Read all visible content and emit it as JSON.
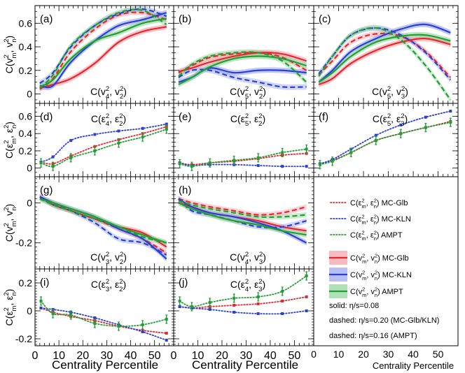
{
  "figure": {
    "x_axis_title": "Centrality Percentile",
    "colors": {
      "mc_glb": "#e8262f",
      "mc_kln": "#2a3fd6",
      "ampt": "#229e35",
      "band_glb": "#f4a0a4",
      "band_kln": "#9aa3ef",
      "band_ampt": "#8fd39a"
    },
    "row_labels": [
      {
        "text": "C(v²m, v²n)"
      },
      {
        "text": "C(ε²m, ε²n)"
      },
      {
        "text": "C(v²m, v²n)"
      },
      {
        "text": "C(ε²m, ε²n)"
      }
    ],
    "legend": {
      "items": [
        {
          "label": "C(ε²m, ε²n) MC-Glb",
          "style": "dot",
          "color": "mc_glb"
        },
        {
          "label": "C(ε²m, ε²n) MC-KLN",
          "style": "dot",
          "color": "mc_kln"
        },
        {
          "label": "C(ε²m, ε²n) AMPT",
          "style": "dot",
          "color": "ampt"
        },
        {
          "label": "C(v²m, v²n) MC-Glb",
          "style": "band",
          "color": "mc_glb"
        },
        {
          "label": "C(v²m, v²n) MC-KLN",
          "style": "band",
          "color": "mc_kln"
        },
        {
          "label": "C(v²m, v²n) AMPT",
          "style": "band",
          "color": "ampt"
        }
      ],
      "notes": [
        "solid: η/s=0.08",
        "dashed: η/s=0.20 (MC-Glb/KLN)",
        "dashed: η/s=0.16 (AMPT)"
      ]
    }
  },
  "chart_data": [
    {
      "id": "a",
      "type": "line",
      "letter": "(a)",
      "title": "C(v²4, v²2)",
      "kind": "v",
      "xlim": [
        0,
        58
      ],
      "ylim": [
        -0.08,
        0.75
      ],
      "yticks": [
        0,
        0.2,
        0.4,
        0.6
      ],
      "x": [
        2,
        7.5,
        15,
        25,
        35,
        45,
        55
      ],
      "series": [
        {
          "model": "mc_glb",
          "style": "solid",
          "values": [
            0.05,
            0.08,
            0.13,
            0.26,
            0.44,
            0.53,
            0.57
          ]
        },
        {
          "model": "mc_glb",
          "style": "dashed",
          "values": [
            0.04,
            0.13,
            0.36,
            0.55,
            0.67,
            0.69,
            0.63
          ]
        },
        {
          "model": "mc_kln",
          "style": "solid",
          "values": [
            0.07,
            0.07,
            0.27,
            0.45,
            0.58,
            0.63,
            0.69
          ]
        },
        {
          "model": "mc_kln",
          "style": "dashed",
          "values": [
            0.09,
            0.18,
            0.4,
            0.58,
            0.68,
            0.72,
            0.66
          ]
        },
        {
          "model": "ampt",
          "style": "solid",
          "values": [
            0.06,
            0.12,
            0.3,
            0.45,
            0.52,
            0.6,
            0.64
          ]
        },
        {
          "model": "ampt",
          "style": "dashed",
          "values": [
            0.05,
            0.16,
            0.41,
            0.58,
            0.69,
            0.71,
            0.59
          ]
        }
      ]
    },
    {
      "id": "b",
      "type": "line",
      "letter": "(b)",
      "title": "C(v²5, v²2)",
      "kind": "v",
      "xlim": [
        0,
        58
      ],
      "ylim": [
        -0.08,
        0.75
      ],
      "yticks": [
        0,
        0.2,
        0.4,
        0.6
      ],
      "x": [
        2,
        7.5,
        15,
        25,
        35,
        45,
        55
      ],
      "series": [
        {
          "model": "mc_glb",
          "style": "solid",
          "values": [
            0.19,
            0.22,
            0.27,
            0.32,
            0.35,
            0.34,
            0.28
          ]
        },
        {
          "model": "mc_glb",
          "style": "dashed",
          "values": [
            0.18,
            0.24,
            0.31,
            0.34,
            0.35,
            0.31,
            0.2
          ]
        },
        {
          "model": "mc_kln",
          "style": "solid",
          "values": [
            0.1,
            0.14,
            0.22,
            0.18,
            0.2,
            0.2,
            0.18
          ]
        },
        {
          "model": "mc_kln",
          "style": "dashed",
          "values": [
            0.14,
            0.2,
            0.2,
            0.14,
            0.1,
            0.06,
            0.06
          ]
        },
        {
          "model": "ampt",
          "style": "solid",
          "values": [
            0.08,
            0.14,
            0.23,
            0.3,
            0.32,
            0.3,
            0.24
          ]
        },
        {
          "model": "ampt",
          "style": "dashed",
          "values": [
            0.15,
            0.25,
            0.32,
            0.35,
            0.35,
            0.28,
            0.1
          ]
        }
      ]
    },
    {
      "id": "c",
      "type": "line",
      "letter": "(c)",
      "title": "C(v²5, v²3)",
      "kind": "v",
      "xlim": [
        0,
        58
      ],
      "ylim": [
        -0.08,
        0.75
      ],
      "yticks": [
        0,
        0.2,
        0.4,
        0.6
      ],
      "x": [
        2,
        7.5,
        15,
        25,
        35,
        45,
        55
      ],
      "series": [
        {
          "model": "mc_glb",
          "style": "solid",
          "values": [
            0.08,
            0.13,
            0.26,
            0.37,
            0.44,
            0.47,
            0.42
          ]
        },
        {
          "model": "mc_glb",
          "style": "dashed",
          "values": [
            0.16,
            0.28,
            0.44,
            0.51,
            0.49,
            0.36,
            0.14
          ]
        },
        {
          "model": "mc_kln",
          "style": "solid",
          "values": [
            0.1,
            0.2,
            0.36,
            0.47,
            0.55,
            0.59,
            0.52
          ]
        },
        {
          "model": "mc_kln",
          "style": "dashed",
          "values": [
            0.17,
            0.32,
            0.5,
            0.56,
            0.5,
            0.35,
            0.12
          ]
        },
        {
          "model": "ampt",
          "style": "solid",
          "values": [
            0.1,
            0.18,
            0.32,
            0.44,
            0.49,
            0.5,
            0.45
          ]
        },
        {
          "model": "ampt",
          "style": "dashed",
          "values": [
            0.15,
            0.32,
            0.5,
            0.56,
            0.46,
            0.24,
            -0.05
          ]
        }
      ]
    },
    {
      "id": "d",
      "type": "line",
      "letter": "(d)",
      "title": "C(ε²4, ε²2)",
      "kind": "e",
      "xlim": [
        0,
        58
      ],
      "ylim": [
        -0.1,
        0.75
      ],
      "yticks": [
        0,
        0.2,
        0.4,
        0.6
      ],
      "x": [
        2.5,
        7.5,
        15,
        25,
        35,
        45,
        55
      ],
      "series": [
        {
          "model": "mc_glb",
          "style": "dotted",
          "values": [
            0.07,
            0.05,
            0.14,
            0.25,
            0.33,
            0.4,
            0.48
          ]
        },
        {
          "model": "mc_kln",
          "style": "dotted",
          "values": [
            0.07,
            0.13,
            0.32,
            0.39,
            0.43,
            0.46,
            0.51
          ]
        },
        {
          "model": "ampt",
          "style": "dotted",
          "values": [
            0.06,
            0.02,
            0.12,
            0.2,
            0.29,
            0.36,
            0.45
          ]
        }
      ]
    },
    {
      "id": "e",
      "type": "line",
      "letter": "(e)",
      "title": "C(ε²5, ε²2)",
      "kind": "e",
      "xlim": [
        0,
        58
      ],
      "ylim": [
        -0.1,
        0.75
      ],
      "yticks": [
        0,
        0.2,
        0.4,
        0.6
      ],
      "x": [
        2.5,
        7.5,
        15,
        25,
        35,
        45,
        55
      ],
      "series": [
        {
          "model": "mc_glb",
          "style": "dotted",
          "values": [
            0.06,
            0.04,
            0.06,
            0.08,
            0.11,
            0.15,
            0.17
          ]
        },
        {
          "model": "mc_kln",
          "style": "dotted",
          "values": [
            0.06,
            0.03,
            0.04,
            0.04,
            0.03,
            0.02,
            0.02
          ]
        },
        {
          "model": "ampt",
          "style": "dotted",
          "values": [
            0.05,
            0.02,
            0.06,
            0.09,
            0.12,
            0.18,
            0.22
          ]
        }
      ]
    },
    {
      "id": "f",
      "type": "line",
      "letter": "(f)",
      "title": "C(ε²5, ε²3)",
      "kind": "e",
      "xlim": [
        0,
        58
      ],
      "ylim": [
        -0.1,
        0.75
      ],
      "yticks": [
        0,
        0.2,
        0.4,
        0.6
      ],
      "x": [
        2.5,
        7.5,
        15,
        25,
        35,
        45,
        55
      ],
      "series": [
        {
          "model": "mc_glb",
          "style": "dotted",
          "values": [
            0.05,
            0.09,
            0.18,
            0.32,
            0.4,
            0.47,
            0.54
          ]
        },
        {
          "model": "mc_kln",
          "style": "dotted",
          "values": [
            0.05,
            0.1,
            0.22,
            0.38,
            0.5,
            0.59,
            0.66
          ]
        },
        {
          "model": "ampt",
          "style": "dotted",
          "values": [
            0.04,
            0.08,
            0.18,
            0.32,
            0.4,
            0.47,
            0.53
          ]
        }
      ]
    },
    {
      "id": "g",
      "type": "line",
      "letter": "(g)",
      "title": "C(v²3, v²2)",
      "kind": "v",
      "xlim": [
        0,
        58
      ],
      "ylim": [
        -0.33,
        0.13
      ],
      "yticks": [
        -0.2,
        0
      ],
      "x": [
        2,
        7.5,
        15,
        25,
        35,
        45,
        55
      ],
      "series": [
        {
          "model": "mc_glb",
          "style": "solid",
          "values": [
            0.03,
            -0.01,
            -0.04,
            -0.08,
            -0.12,
            -0.15,
            -0.22
          ]
        },
        {
          "model": "mc_glb",
          "style": "dashed",
          "values": [
            0.03,
            0.0,
            -0.04,
            -0.08,
            -0.13,
            -0.18,
            -0.25
          ]
        },
        {
          "model": "mc_kln",
          "style": "solid",
          "values": [
            0.03,
            0.0,
            -0.03,
            -0.07,
            -0.13,
            -0.18,
            -0.28
          ]
        },
        {
          "model": "mc_kln",
          "style": "dashed",
          "values": [
            0.03,
            -0.01,
            -0.04,
            -0.1,
            -0.18,
            -0.2,
            -0.26
          ]
        },
        {
          "model": "ampt",
          "style": "solid",
          "values": [
            0.02,
            0.0,
            -0.03,
            -0.07,
            -0.12,
            -0.16,
            -0.2
          ]
        },
        {
          "model": "ampt",
          "style": "dashed",
          "values": [
            0.02,
            -0.01,
            -0.04,
            -0.08,
            -0.12,
            -0.17,
            -0.2
          ]
        }
      ]
    },
    {
      "id": "h",
      "type": "line",
      "letter": "(h)",
      "title": "C(v²4, v²3)",
      "kind": "v",
      "xlim": [
        0,
        58
      ],
      "ylim": [
        -0.33,
        0.13
      ],
      "yticks": [
        -0.2,
        0
      ],
      "x": [
        2,
        7.5,
        15,
        25,
        35,
        45,
        55
      ],
      "series": [
        {
          "model": "mc_glb",
          "style": "solid",
          "values": [
            0.0,
            -0.02,
            -0.05,
            -0.07,
            -0.09,
            -0.12,
            -0.14
          ]
        },
        {
          "model": "mc_glb",
          "style": "dashed",
          "values": [
            0.02,
            0.0,
            -0.02,
            -0.04,
            -0.06,
            -0.05,
            -0.02
          ]
        },
        {
          "model": "mc_kln",
          "style": "solid",
          "values": [
            0.02,
            -0.02,
            -0.05,
            -0.07,
            -0.1,
            -0.14,
            -0.2
          ]
        },
        {
          "model": "mc_kln",
          "style": "dashed",
          "values": [
            0.02,
            -0.04,
            -0.06,
            -0.09,
            -0.12,
            -0.12,
            -0.09
          ]
        },
        {
          "model": "ampt",
          "style": "solid",
          "values": [
            0.0,
            -0.03,
            -0.06,
            -0.09,
            -0.11,
            -0.14,
            -0.16
          ]
        },
        {
          "model": "ampt",
          "style": "dashed",
          "values": [
            0.01,
            -0.01,
            -0.03,
            -0.05,
            -0.07,
            -0.07,
            -0.06
          ]
        }
      ]
    },
    {
      "id": "i",
      "type": "line",
      "letter": "(i)",
      "title": "C(ε²3, ε²2)",
      "kind": "e",
      "xlim": [
        0,
        58
      ],
      "ylim": [
        -0.25,
        0.3
      ],
      "yticks": [
        -0.2,
        0,
        0.2
      ],
      "x": [
        2.5,
        7.5,
        15,
        25,
        35,
        45,
        55
      ],
      "series": [
        {
          "model": "mc_glb",
          "style": "dotted",
          "values": [
            0.02,
            -0.01,
            -0.04,
            -0.07,
            -0.11,
            -0.14,
            -0.16
          ]
        },
        {
          "model": "mc_kln",
          "style": "dotted",
          "values": [
            0.02,
            0.01,
            -0.01,
            -0.05,
            -0.1,
            -0.15,
            -0.21
          ]
        },
        {
          "model": "ampt",
          "style": "dotted",
          "values": [
            0.07,
            -0.02,
            -0.03,
            -0.09,
            -0.11,
            -0.1,
            -0.06
          ]
        }
      ]
    },
    {
      "id": "j",
      "type": "line",
      "letter": "(j)",
      "title": "C(ε²4, ε²3)",
      "kind": "e",
      "xlim": [
        0,
        58
      ],
      "ylim": [
        -0.25,
        0.3
      ],
      "yticks": [
        -0.2,
        0,
        0.2
      ],
      "x": [
        2.5,
        7.5,
        15,
        25,
        35,
        45,
        55
      ],
      "series": [
        {
          "model": "mc_glb",
          "style": "dotted",
          "values": [
            0.03,
            0.02,
            0.03,
            0.04,
            0.05,
            0.07,
            0.1
          ]
        },
        {
          "model": "mc_kln",
          "style": "dotted",
          "values": [
            0.03,
            0.02,
            0.01,
            -0.01,
            -0.02,
            -0.02,
            0.0
          ]
        },
        {
          "model": "ampt",
          "style": "dotted",
          "values": [
            0.07,
            0.03,
            0.06,
            0.09,
            0.1,
            0.14,
            0.25
          ]
        }
      ]
    }
  ],
  "x_ticks": [
    0,
    10,
    20,
    30,
    40,
    50
  ]
}
